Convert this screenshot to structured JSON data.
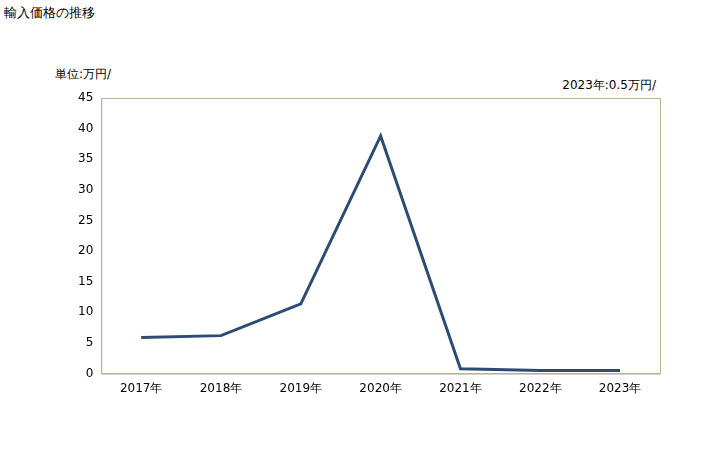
{
  "chart_data": {
    "type": "line",
    "title": "輸入価格の推移",
    "y_label": "単位:万円/",
    "annotation": "2023年:0.5万円/",
    "categories": [
      "2017年",
      "2018年",
      "2019年",
      "2020年",
      "2021年",
      "2022年",
      "2023年"
    ],
    "values": [
      5.9,
      6.2,
      11.4,
      38.8,
      0.8,
      0.5,
      0.5
    ],
    "color": "#2d4b73",
    "ylim": [
      0,
      45
    ],
    "yticks": [
      0,
      5,
      10,
      15,
      20,
      25,
      30,
      35,
      40,
      45
    ],
    "grid": false
  }
}
